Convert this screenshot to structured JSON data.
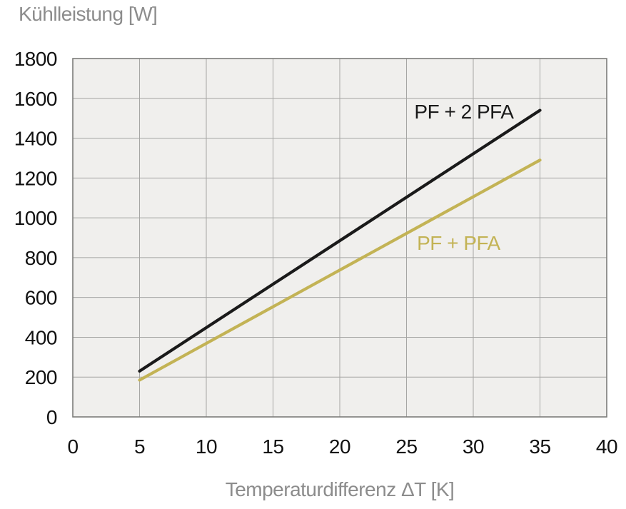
{
  "chart_data": {
    "type": "line",
    "title": "Kühlleistung [W]",
    "ylabel": "Kühlleistung [W]",
    "xlabel": "Temperaturdifferenz ΔT [K]",
    "xlim": [
      0,
      40
    ],
    "ylim": [
      0,
      1800
    ],
    "xticks": [
      0,
      5,
      10,
      15,
      20,
      25,
      30,
      35,
      40
    ],
    "yticks": [
      0,
      200,
      400,
      600,
      800,
      1000,
      1200,
      1400,
      1600,
      1800
    ],
    "grid": true,
    "legend_position": "inline-labels",
    "series": [
      {
        "name": "PF + 2 PFA",
        "color": "#1a1a1a",
        "points": [
          [
            5,
            230
          ],
          [
            35,
            1540
          ]
        ],
        "label_at": [
          29.3,
          1535
        ]
      },
      {
        "name": "PF + PFA",
        "color": "#c3b355",
        "points": [
          [
            5,
            185
          ],
          [
            35,
            1290
          ]
        ],
        "label_at": [
          28.9,
          875
        ]
      }
    ],
    "colors": {
      "plot_background": "#f0efed",
      "gridline": "#a6a6a4",
      "border": "#7c7c7a",
      "tick_text": "#111111",
      "axis_label_text": "#8c8c8c"
    }
  }
}
